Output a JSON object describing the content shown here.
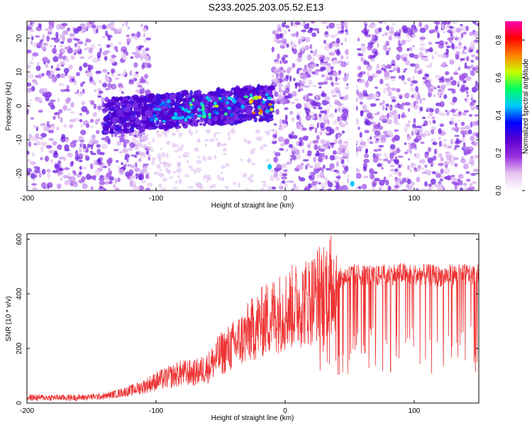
{
  "title": "S233.2025.203.05.52.E13",
  "chart_data": [
    {
      "type": "heatmap",
      "xlabel": "Height of straight line (km)",
      "ylabel": "Frequency (Hz)",
      "xlim": [
        -200,
        150
      ],
      "ylim": [
        -25,
        25
      ],
      "xticks": [
        -200,
        -100,
        0,
        100
      ],
      "xtick_labels": [
        "-200",
        "-100",
        "0",
        "100"
      ],
      "yticks": [
        -20,
        -10,
        0,
        10,
        20
      ],
      "ytick_labels": [
        "-20",
        "-10",
        "0",
        "10",
        "20"
      ],
      "colorbar": {
        "label": "Normalized spectral amplitude",
        "range": [
          0,
          0.9
        ],
        "ticks": [
          0.0,
          0.2,
          0.4,
          0.6,
          0.8
        ],
        "tick_labels": [
          "0.0",
          "0.2",
          "0.4",
          "0.6",
          "0.8"
        ],
        "colors": [
          "#ffffff",
          "#e6c6f0",
          "#9b30e0",
          "#5a00d0",
          "#0000ff",
          "#00c8ff",
          "#00ff60",
          "#c8ff00",
          "#ff8000",
          "#ff0000",
          "#ff00b0"
        ]
      },
      "features": [
        {
          "desc": "broadband speckle",
          "x_range": [
            -200,
            -115
          ],
          "freq_range": [
            -25,
            25
          ]
        },
        {
          "desc": "dominant band",
          "x_range": [
            -140,
            -10
          ],
          "freq_range": [
            -7,
            5
          ]
        },
        {
          "desc": "speckle region",
          "x_range": [
            -10,
            150
          ],
          "freq_range": [
            -25,
            25
          ]
        },
        {
          "desc": "vertical streak",
          "x_center": 52,
          "freq_range": [
            -25,
            25
          ]
        }
      ]
    },
    {
      "type": "line",
      "xlabel": "Height of straight line (km)",
      "ylabel": "SNR (10 * v/v)",
      "xlim": [
        -200,
        150
      ],
      "ylim": [
        0,
        620
      ],
      "xticks": [
        -200,
        -100,
        0,
        100
      ],
      "xtick_labels": [
        "-200",
        "-100",
        "0",
        "100"
      ],
      "yticks": [
        0,
        200,
        400,
        600
      ],
      "ytick_labels": [
        "0",
        "200",
        "400",
        "600"
      ],
      "series": [
        {
          "color": "#ee3333",
          "x": [
            -200,
            -180,
            -160,
            -140,
            -130,
            -120,
            -110,
            -100,
            -90,
            -80,
            -70,
            -60,
            -50,
            -40,
            -30,
            -20,
            -10,
            0,
            10,
            20,
            30,
            40,
            50,
            60,
            70,
            80,
            90,
            100,
            110,
            120,
            130,
            140,
            150
          ],
          "y": [
            20,
            20,
            20,
            25,
            35,
            45,
            60,
            80,
            95,
            110,
            110,
            130,
            180,
            210,
            250,
            290,
            320,
            340,
            360,
            380,
            420,
            450,
            470,
            470,
            465,
            470,
            475,
            470,
            470,
            465,
            470,
            470,
            470
          ]
        }
      ]
    }
  ]
}
